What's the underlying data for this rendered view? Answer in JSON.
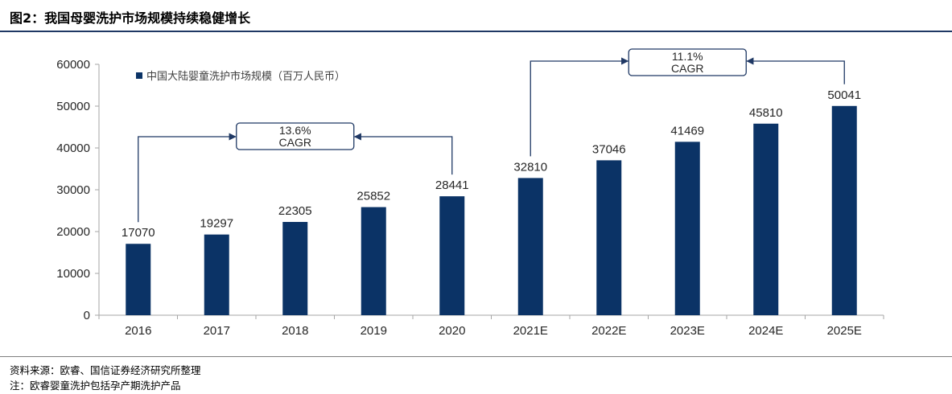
{
  "figure": {
    "title": "图2：我国母婴洗护市场规模持续稳健增长",
    "source": "资料来源：欧睿、国信证券经济研究所整理",
    "note": "注：欧睿婴童洗护包括孕产期洗护产品"
  },
  "chart_data": {
    "type": "bar",
    "categories": [
      "2016",
      "2017",
      "2018",
      "2019",
      "2020",
      "2021E",
      "2022E",
      "2023E",
      "2024E",
      "2025E"
    ],
    "series": [
      {
        "name": "中国大陆婴童洗护市场规模（百万人民币）",
        "values": [
          17070,
          19297,
          22305,
          25852,
          28441,
          32810,
          37046,
          41469,
          45810,
          50041
        ],
        "color": "#0b3366"
      }
    ],
    "yticks": [
      0,
      10000,
      20000,
      30000,
      40000,
      50000,
      60000
    ],
    "ylim": [
      0,
      60000
    ],
    "grid": false,
    "legend": "top-left",
    "data_labels": true,
    "annotations": [
      {
        "line1": "13.6%",
        "line2": "CAGR",
        "from": "2016",
        "to": "2020"
      },
      {
        "line1": "11.1%",
        "line2": "CAGR",
        "from": "2021E",
        "to": "2025E"
      }
    ]
  }
}
